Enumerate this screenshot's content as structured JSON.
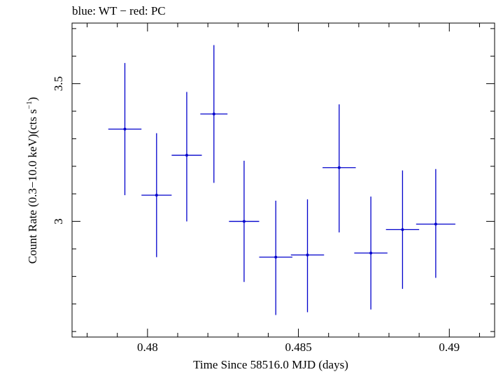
{
  "chart_data": {
    "type": "scatter",
    "title": "blue: WT − red: PC",
    "xlabel": "Time Since 58516.0 MJD (days)",
    "ylabel_main": "Count Rate (0.3−10.0 keV)(cts s",
    "ylabel_sup": "−1",
    "ylabel_close": ")",
    "xlim": [
      0.4775,
      0.4915
    ],
    "ylim": [
      2.58,
      3.72
    ],
    "x_ticks": [
      {
        "value": 0.48,
        "label": "0.48"
      },
      {
        "value": 0.485,
        "label": "0.485"
      },
      {
        "value": 0.49,
        "label": "0.49"
      }
    ],
    "y_ticks": [
      {
        "value": 3.0,
        "label": "3"
      },
      {
        "value": 3.5,
        "label": "3.5"
      }
    ],
    "x_minor_step": 0.001,
    "y_minor_step": 0.1,
    "grid": false,
    "series": [
      {
        "color": "#0000cc",
        "points": [
          {
            "x": 0.47925,
            "xerr": 0.00055,
            "y": 3.335,
            "ylo": 3.095,
            "yhi": 3.575
          },
          {
            "x": 0.4803,
            "xerr": 0.0005,
            "y": 3.095,
            "ylo": 2.87,
            "yhi": 3.32
          },
          {
            "x": 0.4813,
            "xerr": 0.0005,
            "y": 3.24,
            "ylo": 3.0,
            "yhi": 3.47
          },
          {
            "x": 0.4822,
            "xerr": 0.00045,
            "y": 3.39,
            "ylo": 3.14,
            "yhi": 3.64
          },
          {
            "x": 0.4832,
            "xerr": 0.0005,
            "y": 3.0,
            "ylo": 2.78,
            "yhi": 3.22
          },
          {
            "x": 0.48425,
            "xerr": 0.00055,
            "y": 2.87,
            "ylo": 2.66,
            "yhi": 3.075
          },
          {
            "x": 0.4853,
            "xerr": 0.00055,
            "y": 2.878,
            "ylo": 2.67,
            "yhi": 3.08
          },
          {
            "x": 0.48635,
            "xerr": 0.00055,
            "y": 3.195,
            "ylo": 2.96,
            "yhi": 3.425
          },
          {
            "x": 0.4874,
            "xerr": 0.00055,
            "y": 2.885,
            "ylo": 2.68,
            "yhi": 3.09
          },
          {
            "x": 0.48845,
            "xerr": 0.00055,
            "y": 2.97,
            "ylo": 2.755,
            "yhi": 3.185
          },
          {
            "x": 0.48955,
            "xerr": 0.00065,
            "y": 2.99,
            "ylo": 2.795,
            "yhi": 3.19
          }
        ]
      }
    ]
  }
}
